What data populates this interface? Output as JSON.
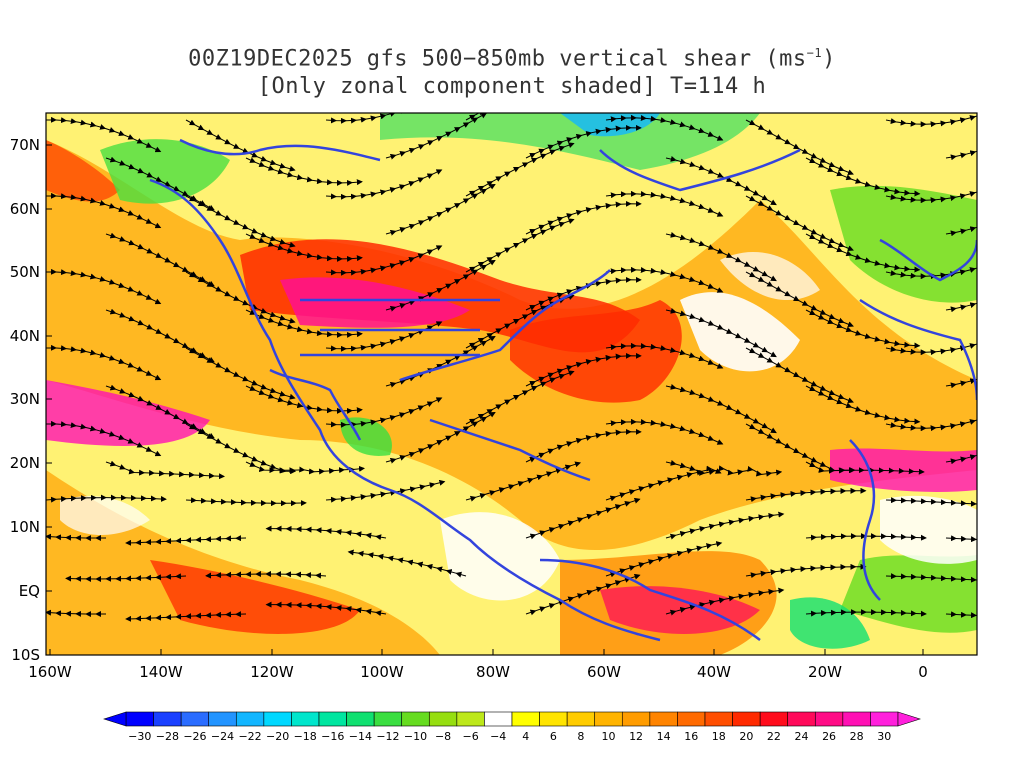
{
  "title": {
    "line1_prefix": "00Z19DEC2025 gfs 500−850mb vertical shear (ms",
    "line1_sup": "−1",
    "line1_suffix": ")",
    "line2": "[Only zonal component shaded] T=114 h"
  },
  "map": {
    "lat_labels": [
      "70N",
      "60N",
      "50N",
      "40N",
      "30N",
      "20N",
      "10N",
      "EQ",
      "10S"
    ],
    "lon_labels": [
      "160W",
      "140W",
      "120W",
      "100W",
      "80W",
      "60W",
      "40W",
      "20W",
      "0"
    ],
    "coastline_color": "#3344dd"
  },
  "colorbar": {
    "values": [
      "−30",
      "−28",
      "−26",
      "−24",
      "−22",
      "−20",
      "−18",
      "−16",
      "−14",
      "−12",
      "−10",
      "−8",
      "−6",
      "−4",
      "4",
      "6",
      "8",
      "10",
      "12",
      "14",
      "16",
      "18",
      "20",
      "22",
      "24",
      "26",
      "28",
      "30"
    ],
    "colors": [
      "#0000ff",
      "#1a40ff",
      "#2a6cff",
      "#2294ff",
      "#12b6ff",
      "#00d8ff",
      "#00e6cc",
      "#00e6a0",
      "#10e070",
      "#3ade40",
      "#66dc20",
      "#96de10",
      "#bde81a",
      "#ffffff",
      "#ffff00",
      "#ffe400",
      "#ffcc00",
      "#ffb400",
      "#ff9c00",
      "#ff8400",
      "#ff6a00",
      "#ff4e00",
      "#ff2a00",
      "#ff0c1c",
      "#ff0a5a",
      "#ff0c86",
      "#ff10b4",
      "#ff20dc"
    ]
  }
}
